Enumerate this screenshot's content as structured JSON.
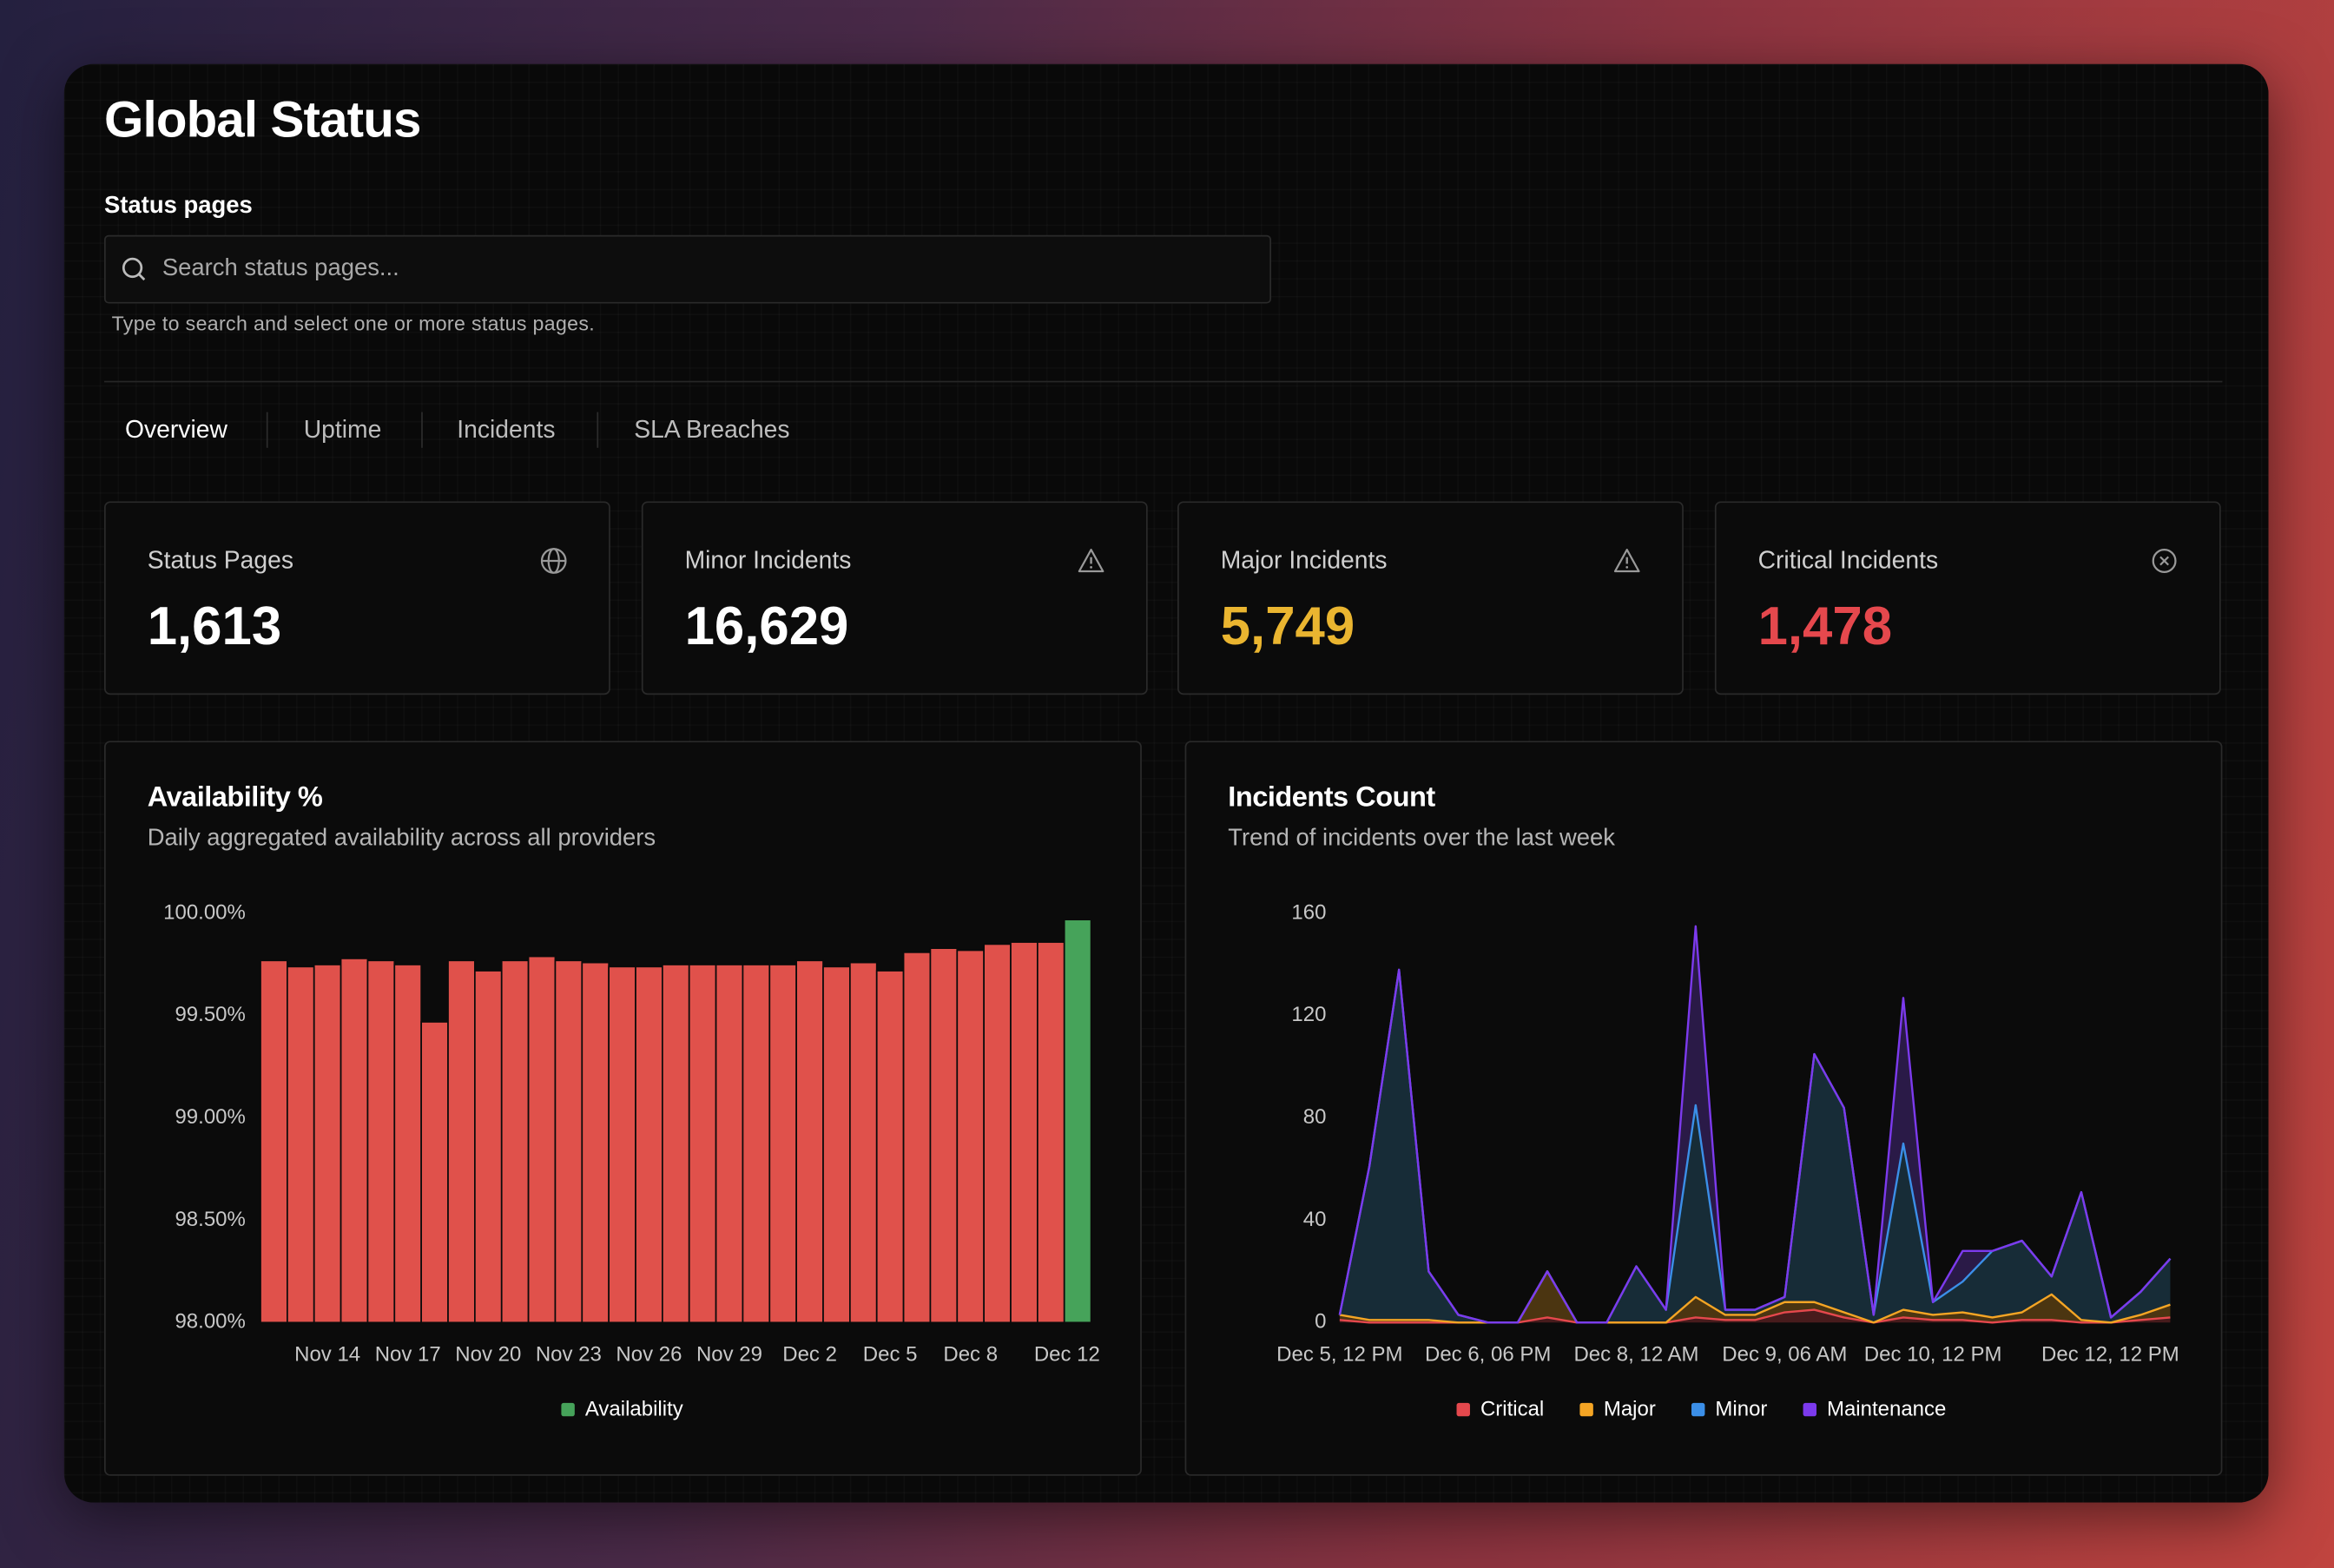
{
  "header": {
    "title": "Global Status"
  },
  "search": {
    "label": "Status pages",
    "placeholder": "Search status pages...",
    "hint": "Type to search and select one or more status pages."
  },
  "tabs": [
    "Overview",
    "Uptime",
    "Incidents",
    "SLA Breaches"
  ],
  "stats": [
    {
      "label": "Status Pages",
      "value": "1,613",
      "color": "#ffffff"
    },
    {
      "label": "Minor Incidents",
      "value": "16,629",
      "color": "#ffffff"
    },
    {
      "label": "Major Incidents",
      "value": "5,749",
      "color": "#eab530"
    },
    {
      "label": "Critical Incidents",
      "value": "1,478",
      "color": "#e5484d"
    }
  ],
  "chart_data": [
    {
      "type": "bar",
      "title": "Availability %",
      "subtitle": "Daily aggregated availability across all providers",
      "categories": [
        null,
        null,
        "Nov 14",
        null,
        null,
        "Nov 17",
        null,
        null,
        "Nov 20",
        null,
        null,
        "Nov 23",
        null,
        null,
        "Nov 26",
        null,
        null,
        "Nov 29",
        null,
        null,
        "Dec 2",
        null,
        null,
        "Dec 5",
        null,
        null,
        "Dec 8",
        null,
        null,
        null,
        "Dec 12"
      ],
      "series": [
        {
          "name": "Availability",
          "color": "#46a35a",
          "values": [
            99.77,
            99.74,
            99.75,
            99.78,
            99.77,
            99.75,
            99.47,
            99.77,
            99.72,
            99.77,
            99.79,
            99.77,
            99.76,
            99.74,
            99.74,
            99.75,
            99.75,
            99.75,
            99.75,
            99.75,
            99.77,
            99.74,
            99.76,
            99.72,
            99.81,
            99.83,
            99.82,
            99.85,
            99.86,
            99.86,
            99.97
          ],
          "colors": [
            "#e0514b",
            "#e0514b",
            "#e0514b",
            "#e0514b",
            "#e0514b",
            "#e0514b",
            "#e0514b",
            "#e0514b",
            "#e0514b",
            "#e0514b",
            "#e0514b",
            "#e0514b",
            "#e0514b",
            "#e0514b",
            "#e0514b",
            "#e0514b",
            "#e0514b",
            "#e0514b",
            "#e0514b",
            "#e0514b",
            "#e0514b",
            "#e0514b",
            "#e0514b",
            "#e0514b",
            "#e0514b",
            "#e0514b",
            "#e0514b",
            "#e0514b",
            "#e0514b",
            "#e0514b",
            "#46a35a"
          ]
        }
      ],
      "ylim": [
        98,
        100
      ],
      "yticks": [
        {
          "value": 98,
          "label": "98.00%"
        },
        {
          "value": 98.5,
          "label": "98.50%"
        },
        {
          "value": 99,
          "label": "99.00%"
        },
        {
          "value": 99.5,
          "label": "99.50%"
        },
        {
          "value": 100,
          "label": "100.00%"
        }
      ],
      "grid": false,
      "legend": "bottom"
    },
    {
      "type": "area",
      "stacked": true,
      "title": "Incidents Count",
      "subtitle": "Trend of incidents over the last week",
      "categories": [
        "Dec 5, 12 PM",
        null,
        null,
        null,
        null,
        "Dec 6, 06 PM",
        null,
        null,
        null,
        null,
        "Dec 8, 12 AM",
        null,
        null,
        null,
        null,
        "Dec 9, 06 AM",
        null,
        null,
        null,
        null,
        "Dec 10, 12 PM",
        null,
        null,
        null,
        null,
        null,
        null,
        null,
        "Dec 12, 12 PM"
      ],
      "series": [
        {
          "name": "Critical",
          "color": "#e5484d",
          "values": [
            1,
            0,
            0,
            0,
            0,
            0,
            0,
            2,
            0,
            0,
            0,
            0,
            2,
            1,
            1,
            4,
            5,
            2,
            0,
            2,
            1,
            1,
            0,
            1,
            1,
            0,
            0,
            1,
            2
          ]
        },
        {
          "name": "Major",
          "color": "#f5a524",
          "values": [
            2,
            1,
            1,
            1,
            0,
            0,
            0,
            18,
            0,
            0,
            0,
            0,
            8,
            2,
            2,
            4,
            3,
            2,
            0,
            3,
            2,
            3,
            2,
            3,
            10,
            1,
            0,
            2,
            5
          ]
        },
        {
          "name": "Minor",
          "color": "#3b8fe8",
          "values": [
            0,
            60,
            137,
            19,
            3,
            0,
            0,
            0,
            0,
            0,
            22,
            5,
            75,
            2,
            2,
            2,
            97,
            80,
            3,
            65,
            5,
            12,
            26,
            28,
            7,
            50,
            2,
            9,
            18
          ]
        },
        {
          "name": "Maintenance",
          "color": "#7c3aed",
          "values": [
            0,
            0,
            0,
            0,
            0,
            0,
            0,
            0,
            0,
            0,
            0,
            0,
            70,
            0,
            0,
            0,
            0,
            0,
            0,
            57,
            0,
            12,
            0,
            0,
            0,
            0,
            0,
            0,
            0
          ]
        }
      ],
      "ylim": [
        0,
        160
      ],
      "yticks": [
        0,
        40,
        80,
        120,
        160
      ],
      "grid": false,
      "legend": "bottom"
    }
  ]
}
